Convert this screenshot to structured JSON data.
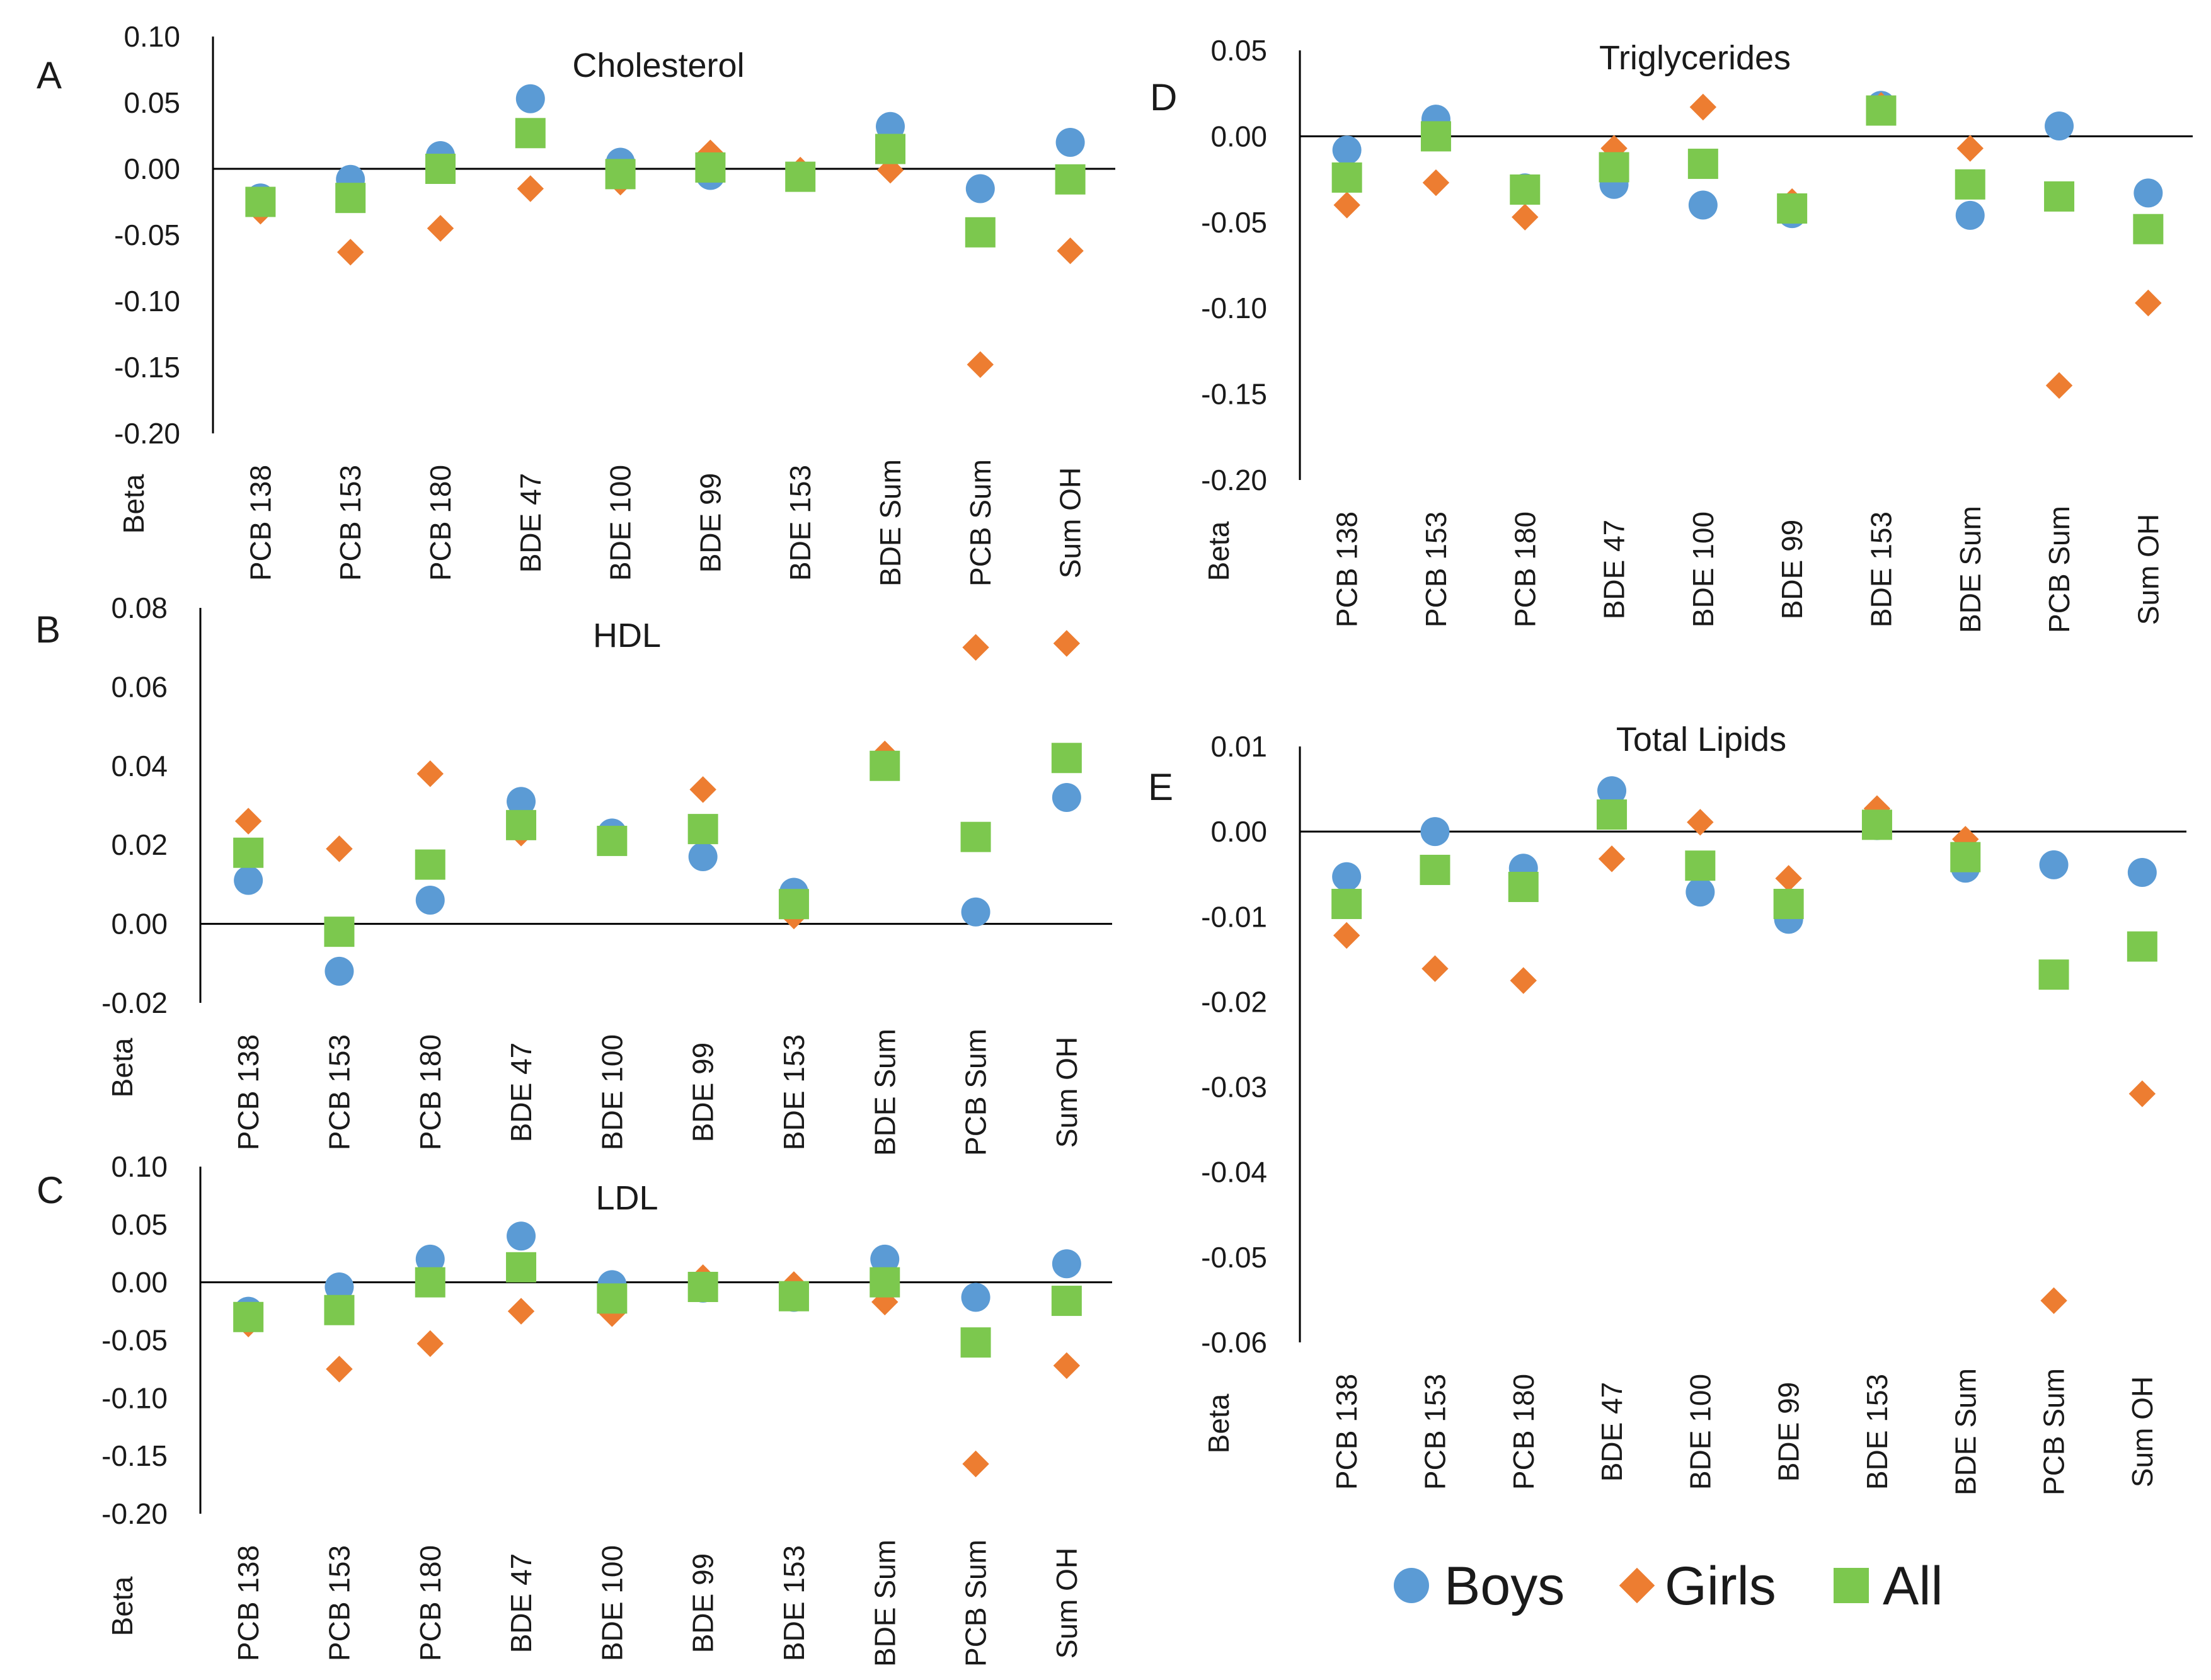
{
  "chart_data": [
    {
      "type": "scatter",
      "panel_label": "A",
      "title": "Cholesterol",
      "ylabel": "Beta",
      "ylim": [
        -0.2,
        0.1
      ],
      "ytick_labels": [
        "0.10",
        "0.05",
        "0.00",
        "-0.05",
        "-0.10",
        "-0.15",
        "-0.20"
      ],
      "categories": [
        "PCB 138",
        "PCB 153",
        "PCB 180",
        "BDE 47",
        "BDE 100",
        "BDE 99",
        "BDE 153",
        "BDE Sum",
        "PCB Sum",
        "Sum OH"
      ],
      "series": [
        {
          "name": "Boys",
          "values": [
            -0.022,
            -0.008,
            0.01,
            0.053,
            0.005,
            -0.005,
            -0.005,
            0.032,
            -0.015,
            0.02
          ]
        },
        {
          "name": "Girls",
          "values": [
            -0.032,
            -0.063,
            -0.045,
            -0.015,
            -0.01,
            0.012,
            -0.001,
            -0.001,
            -0.148,
            -0.062
          ]
        },
        {
          "name": "All",
          "values": [
            -0.025,
            -0.022,
            0.0,
            0.027,
            -0.004,
            0.001,
            -0.006,
            0.015,
            -0.048,
            -0.008
          ]
        }
      ]
    },
    {
      "type": "scatter",
      "panel_label": "B",
      "title": "HDL",
      "ylabel": "Beta",
      "ylim": [
        -0.02,
        0.08
      ],
      "ytick_labels": [
        "0.08",
        "0.06",
        "0.04",
        "0.02",
        "0.00",
        "-0.02"
      ],
      "categories": [
        "PCB 138",
        "PCB 153",
        "PCB 180",
        "BDE 47",
        "BDE 100",
        "BDE 99",
        "BDE 153",
        "BDE Sum",
        "PCB Sum",
        "Sum OH"
      ],
      "series": [
        {
          "name": "Boys",
          "values": [
            0.011,
            -0.012,
            0.006,
            0.031,
            0.023,
            0.017,
            0.008,
            0.041,
            0.003,
            0.032
          ]
        },
        {
          "name": "Girls",
          "values": [
            0.026,
            0.019,
            0.038,
            0.023,
            0.021,
            0.034,
            0.002,
            0.043,
            0.07,
            0.071
          ]
        },
        {
          "name": "All",
          "values": [
            0.018,
            -0.002,
            0.015,
            0.025,
            0.021,
            0.024,
            0.005,
            0.04,
            0.022,
            0.042
          ]
        }
      ]
    },
    {
      "type": "scatter",
      "panel_label": "C",
      "title": "LDL",
      "ylabel": "Beta",
      "ylim": [
        -0.2,
        0.1
      ],
      "ytick_labels": [
        "0.10",
        "0.05",
        "0.00",
        "-0.05",
        "-0.10",
        "-0.15",
        "-0.20"
      ],
      "categories": [
        "PCB 138",
        "PCB 153",
        "PCB 180",
        "BDE 47",
        "BDE 100",
        "BDE 99",
        "BDE 153",
        "BDE Sum",
        "PCB Sum",
        "Sum OH"
      ],
      "series": [
        {
          "name": "Boys",
          "values": [
            -0.025,
            -0.004,
            0.02,
            0.04,
            -0.002,
            -0.005,
            -0.013,
            0.02,
            -0.013,
            0.016
          ]
        },
        {
          "name": "Girls",
          "values": [
            -0.036,
            -0.075,
            -0.053,
            -0.025,
            -0.027,
            0.004,
            -0.002,
            -0.017,
            -0.157,
            -0.072
          ]
        },
        {
          "name": "All",
          "values": [
            -0.03,
            -0.024,
            0.0,
            0.013,
            -0.014,
            -0.004,
            -0.012,
            0.0,
            -0.052,
            -0.016
          ]
        }
      ]
    },
    {
      "type": "scatter",
      "panel_label": "D",
      "title": "Triglycerides",
      "ylabel": "Beta",
      "ylim": [
        -0.2,
        0.05
      ],
      "ytick_labels": [
        "0.05",
        "0.00",
        "-0.05",
        "-0.10",
        "-0.15",
        "-0.20"
      ],
      "categories": [
        "PCB 138",
        "PCB 153",
        "PCB 180",
        "BDE 47",
        "BDE 100",
        "BDE 99",
        "BDE 153",
        "BDE Sum",
        "PCB Sum",
        "Sum OH"
      ],
      "series": [
        {
          "name": "Boys",
          "values": [
            -0.008,
            0.01,
            -0.03,
            -0.028,
            -0.04,
            -0.045,
            0.018,
            -0.046,
            0.006,
            -0.033
          ]
        },
        {
          "name": "Girls",
          "values": [
            -0.04,
            -0.027,
            -0.047,
            -0.007,
            0.017,
            -0.038,
            0.018,
            -0.007,
            -0.145,
            -0.097
          ]
        },
        {
          "name": "All",
          "values": [
            -0.024,
            0.0,
            -0.031,
            -0.018,
            -0.016,
            -0.042,
            0.015,
            -0.028,
            -0.035,
            -0.054
          ]
        }
      ]
    },
    {
      "type": "scatter",
      "panel_label": "E",
      "title": "Total Lipids",
      "ylabel": "Beta",
      "ylim": [
        -0.06,
        0.01
      ],
      "ytick_labels": [
        "0.01",
        "0.00",
        "-0.01",
        "-0.02",
        "-0.03",
        "-0.04",
        "-0.05",
        "-0.06"
      ],
      "categories": [
        "PCB 138",
        "PCB 153",
        "PCB 180",
        "BDE 47",
        "BDE 100",
        "BDE 99",
        "BDE 153",
        "BDE Sum",
        "PCB Sum",
        "Sum OH"
      ],
      "series": [
        {
          "name": "Boys",
          "values": [
            -0.0053,
            0.0,
            -0.0043,
            0.0048,
            -0.0071,
            -0.0103,
            0.0007,
            -0.0043,
            -0.0039,
            -0.0048
          ]
        },
        {
          "name": "Girls",
          "values": [
            -0.0122,
            -0.0161,
            -0.0175,
            -0.0032,
            0.0011,
            -0.0055,
            0.0027,
            -0.0009,
            -0.0551,
            -0.0308
          ]
        },
        {
          "name": "All",
          "values": [
            -0.0085,
            -0.0045,
            -0.0065,
            0.002,
            -0.004,
            -0.0085,
            0.0008,
            -0.003,
            -0.0168,
            -0.0135
          ]
        }
      ]
    }
  ],
  "legend": {
    "placement": "bottom-right",
    "items": [
      {
        "name": "Boys",
        "marker": "circle",
        "color": "#5b9bd5"
      },
      {
        "name": "Girls",
        "marker": "diamond",
        "color": "#ed7d31"
      },
      {
        "name": "All",
        "marker": "square",
        "color": "#70ad47"
      }
    ]
  },
  "colors": {
    "Boys": "#5b9bd5",
    "Girls": "#ed7d31",
    "All": "#7cc84e"
  }
}
